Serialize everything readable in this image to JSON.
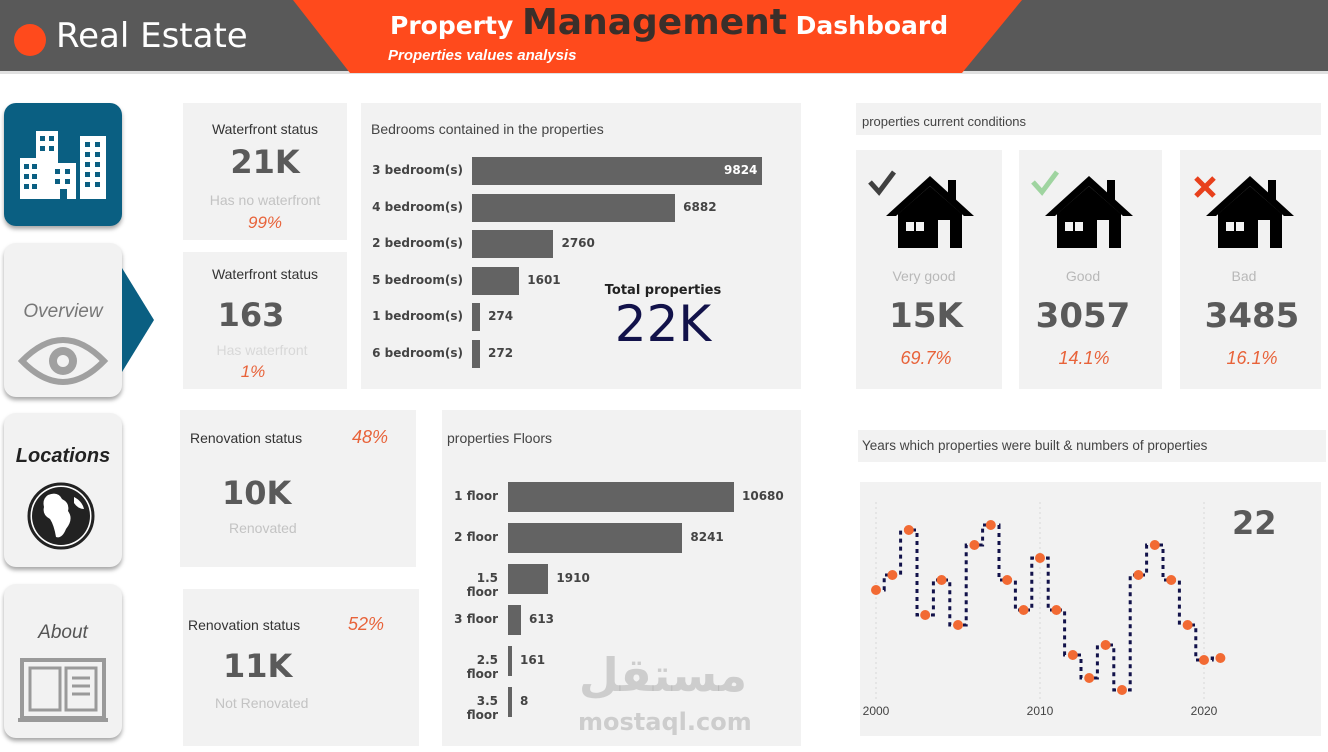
{
  "header": {
    "brand": "Real Estate",
    "title_pre": "Property ",
    "title_big": "Management",
    "title_post": " Dashboard",
    "subtitle": "Properties values analysis",
    "colors": {
      "bar_bg": "#595959",
      "accent": "#ff4a1c",
      "dot": "#ff4a1c"
    }
  },
  "nav": {
    "home_icon": "buildings-icon",
    "overview": "Overview",
    "locations": "Locations",
    "about": "About"
  },
  "waterfront_none": {
    "title": "Waterfront status",
    "value": "21K",
    "caption": "Has no waterfront",
    "pct": "99%"
  },
  "waterfront_yes": {
    "title": "Waterfront status",
    "value": "163",
    "caption": "Has waterfront",
    "pct": "1%"
  },
  "renovated": {
    "title": "Renovation status",
    "pct": "48%",
    "value": "10K",
    "caption": "Renovated"
  },
  "not_renovated": {
    "title": "Renovation status",
    "pct": "52%",
    "value": "11K",
    "caption": "Not Renovated"
  },
  "bedrooms": {
    "title": "Bedrooms contained in the properties",
    "total_label": "Total properties",
    "total_value": "22K",
    "chart_data": {
      "type": "bar",
      "categories": [
        "3 bedroom(s)",
        "4 bedroom(s)",
        "2 bedroom(s)",
        "5 bedroom(s)",
        "1 bedroom(s)",
        "6 bedroom(s)"
      ],
      "values": [
        9824,
        6882,
        2760,
        1601,
        274,
        272
      ],
      "labels": [
        "9824",
        "6882",
        "2760",
        "1601",
        "274",
        "272"
      ]
    }
  },
  "floors": {
    "title": "properties Floors",
    "chart_data": {
      "type": "bar",
      "categories": [
        "1 floor",
        "2 floor",
        "1.5 floor",
        "3 floor",
        "2.5 floor",
        "3.5 floor"
      ],
      "values": [
        10680,
        8241,
        1910,
        613,
        161,
        8
      ],
      "labels": [
        "10680",
        "8241",
        "1910",
        "613",
        "161",
        "8"
      ]
    }
  },
  "conditions": {
    "title": "properties current conditions",
    "items": [
      {
        "label": "Very good",
        "value": "15K",
        "pct": "69.7%",
        "mark": "check-icon",
        "mark_color": "#404040"
      },
      {
        "label": "Good",
        "value": "3057",
        "pct": "14.1%",
        "mark": "check-icon",
        "mark_color": "#9fd4a0"
      },
      {
        "label": "Bad",
        "value": "3485",
        "pct": "16.1%",
        "mark": "cross-icon",
        "mark_color": "#e8401c"
      }
    ]
  },
  "years": {
    "title": "Years which properties were built & numbers of properties",
    "badge": "22",
    "chart_data": {
      "type": "line",
      "x_ticks": [
        "2000",
        "2010",
        "2020"
      ],
      "x": [
        2000,
        2001,
        2002,
        2003,
        2004,
        2005,
        2006,
        2007,
        2008,
        2009,
        2010,
        2011,
        2012,
        2013,
        2014,
        2015,
        2016,
        2017,
        2018,
        2019,
        2020,
        2021
      ],
      "values": [
        590,
        575,
        530,
        615,
        580,
        625,
        545,
        525,
        580,
        610,
        558,
        610,
        655,
        678,
        645,
        690,
        575,
        545,
        580,
        625,
        660,
        658
      ]
    }
  },
  "watermark": {
    "text": "مستقل",
    "sub": "mostaql.com"
  }
}
